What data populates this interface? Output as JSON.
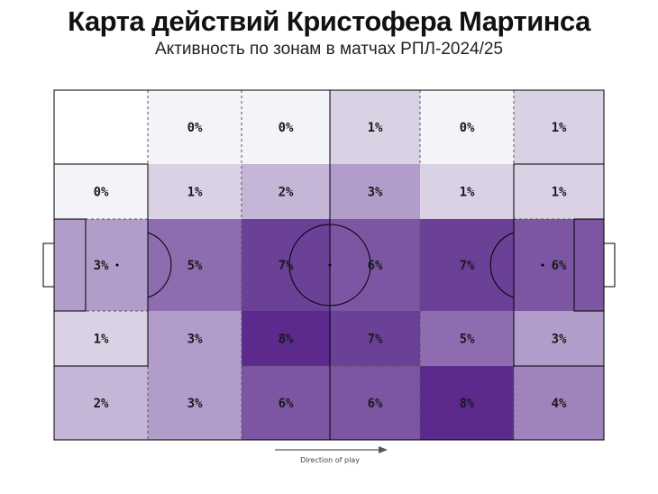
{
  "title": "Карта действий Кристофера Мартинса",
  "subtitle": "Активность по зонам в матчах РПЛ-2024/25",
  "direction_label": "Direction of play",
  "colors": {
    "max": "#5b2a8c",
    "min": "#f4f3f7",
    "line": "#000000"
  },
  "chart_data": {
    "type": "heatmap",
    "title": "Карта действий Кристофера Мартинса",
    "subtitle": "Активность по зонам в матчах РПЛ-2024/25",
    "value_unit": "%",
    "rows": 5,
    "cols": 6,
    "cells": [
      [
        null,
        0,
        0,
        1,
        0,
        1
      ],
      [
        0,
        1,
        2,
        3,
        1,
        1
      ],
      [
        3,
        5,
        7,
        6,
        7,
        6
      ],
      [
        1,
        3,
        8,
        7,
        5,
        3
      ],
      [
        2,
        3,
        6,
        6,
        8,
        4
      ]
    ],
    "labels": [
      [
        "",
        "0%",
        "0%",
        "1%",
        "0%",
        "1%"
      ],
      [
        "0%",
        "1%",
        "2%",
        "3%",
        "1%",
        "1%"
      ],
      [
        "3%",
        "5%",
        "7%",
        "6%",
        "7%",
        "6%"
      ],
      [
        "1%",
        "3%",
        "8%",
        "7%",
        "5%",
        "3%"
      ],
      [
        "2%",
        "3%",
        "6%",
        "6%",
        "8%",
        "4%"
      ]
    ]
  }
}
